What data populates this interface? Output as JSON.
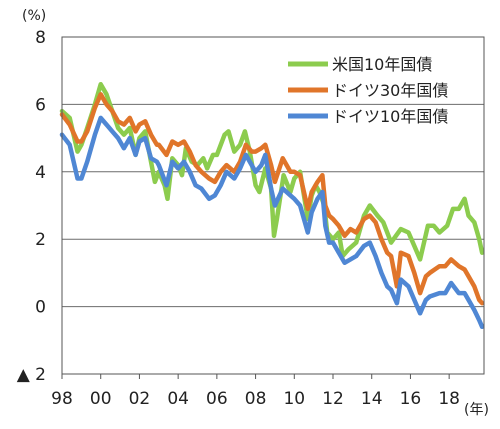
{
  "chart_data": {
    "type": "line",
    "y_unit": "(%)",
    "x_unit": "(年)",
    "xlim": [
      1998,
      2019.8
    ],
    "ylim": [
      -2,
      8
    ],
    "grid": "horizontal",
    "legend_position": "top-right",
    "y_ticks": [
      {
        "value": 8,
        "label": "8"
      },
      {
        "value": 6,
        "label": "6"
      },
      {
        "value": 4,
        "label": "4"
      },
      {
        "value": 2,
        "label": "2"
      },
      {
        "value": 0,
        "label": "0"
      },
      {
        "value": -2,
        "label": "▲ 2"
      }
    ],
    "x_ticks": [
      {
        "value": 1998,
        "label": "98"
      },
      {
        "value": 2000,
        "label": "00"
      },
      {
        "value": 2002,
        "label": "02"
      },
      {
        "value": 2004,
        "label": "04"
      },
      {
        "value": 2006,
        "label": "06"
      },
      {
        "value": 2008,
        "label": "08"
      },
      {
        "value": 2010,
        "label": "10"
      },
      {
        "value": 2012,
        "label": "12"
      },
      {
        "value": 2014,
        "label": "14"
      },
      {
        "value": 2016,
        "label": "16"
      },
      {
        "value": 2018,
        "label": "18"
      }
    ],
    "series": [
      {
        "name": "米国10年国債",
        "color": "#8ccc4e",
        "points": [
          [
            1998.0,
            5.8
          ],
          [
            1998.4,
            5.6
          ],
          [
            1998.8,
            4.6
          ],
          [
            1999.0,
            4.8
          ],
          [
            1999.3,
            5.3
          ],
          [
            1999.7,
            6.0
          ],
          [
            2000.0,
            6.6
          ],
          [
            2000.3,
            6.3
          ],
          [
            2000.6,
            5.8
          ],
          [
            2000.9,
            5.3
          ],
          [
            2001.2,
            5.1
          ],
          [
            2001.5,
            5.3
          ],
          [
            2001.8,
            4.5
          ],
          [
            2002.0,
            5.0
          ],
          [
            2002.3,
            5.2
          ],
          [
            2002.6,
            4.3
          ],
          [
            2002.8,
            3.7
          ],
          [
            2003.0,
            4.0
          ],
          [
            2003.3,
            3.6
          ],
          [
            2003.45,
            3.2
          ],
          [
            2003.7,
            4.4
          ],
          [
            2004.0,
            4.2
          ],
          [
            2004.2,
            3.9
          ],
          [
            2004.4,
            4.7
          ],
          [
            2004.7,
            4.3
          ],
          [
            2005.0,
            4.2
          ],
          [
            2005.3,
            4.4
          ],
          [
            2005.5,
            4.1
          ],
          [
            2005.8,
            4.5
          ],
          [
            2006.0,
            4.5
          ],
          [
            2006.4,
            5.1
          ],
          [
            2006.6,
            5.2
          ],
          [
            2006.9,
            4.6
          ],
          [
            2007.2,
            4.8
          ],
          [
            2007.45,
            5.2
          ],
          [
            2007.7,
            4.6
          ],
          [
            2008.0,
            3.6
          ],
          [
            2008.2,
            3.4
          ],
          [
            2008.5,
            4.1
          ],
          [
            2008.8,
            3.5
          ],
          [
            2008.95,
            2.1
          ],
          [
            2009.1,
            2.6
          ],
          [
            2009.45,
            3.9
          ],
          [
            2009.8,
            3.4
          ],
          [
            2010.0,
            3.8
          ],
          [
            2010.3,
            4.0
          ],
          [
            2010.7,
            2.6
          ],
          [
            2010.9,
            3.3
          ],
          [
            2011.1,
            3.6
          ],
          [
            2011.3,
            3.4
          ],
          [
            2011.55,
            3.0
          ],
          [
            2011.7,
            2.2
          ],
          [
            2012.0,
            2.0
          ],
          [
            2012.3,
            2.2
          ],
          [
            2012.5,
            1.5
          ],
          [
            2012.8,
            1.7
          ],
          [
            2013.2,
            1.9
          ],
          [
            2013.6,
            2.7
          ],
          [
            2013.9,
            3.0
          ],
          [
            2014.3,
            2.7
          ],
          [
            2014.6,
            2.5
          ],
          [
            2015.0,
            1.9
          ],
          [
            2015.5,
            2.3
          ],
          [
            2015.9,
            2.2
          ],
          [
            2016.2,
            1.8
          ],
          [
            2016.5,
            1.4
          ],
          [
            2016.9,
            2.4
          ],
          [
            2017.2,
            2.4
          ],
          [
            2017.5,
            2.2
          ],
          [
            2017.9,
            2.4
          ],
          [
            2018.2,
            2.9
          ],
          [
            2018.5,
            2.9
          ],
          [
            2018.8,
            3.2
          ],
          [
            2019.0,
            2.7
          ],
          [
            2019.3,
            2.5
          ],
          [
            2019.55,
            2.0
          ],
          [
            2019.7,
            1.6
          ]
        ]
      },
      {
        "name": "ドイツ30年国債",
        "color": "#e0752a",
        "points": [
          [
            1998.0,
            5.7
          ],
          [
            1998.4,
            5.4
          ],
          [
            1998.8,
            4.9
          ],
          [
            1999.0,
            4.9
          ],
          [
            1999.3,
            5.2
          ],
          [
            1999.7,
            5.9
          ],
          [
            2000.0,
            6.3
          ],
          [
            2000.3,
            6.0
          ],
          [
            2000.6,
            5.8
          ],
          [
            2000.9,
            5.5
          ],
          [
            2001.2,
            5.4
          ],
          [
            2001.5,
            5.6
          ],
          [
            2001.8,
            5.2
          ],
          [
            2002.0,
            5.4
          ],
          [
            2002.3,
            5.5
          ],
          [
            2002.6,
            5.1
          ],
          [
            2002.9,
            4.8
          ],
          [
            2003.0,
            4.8
          ],
          [
            2003.4,
            4.5
          ],
          [
            2003.7,
            4.9
          ],
          [
            2004.0,
            4.8
          ],
          [
            2004.3,
            4.9
          ],
          [
            2004.6,
            4.6
          ],
          [
            2004.9,
            4.2
          ],
          [
            2005.2,
            4.0
          ],
          [
            2005.6,
            3.8
          ],
          [
            2005.9,
            3.7
          ],
          [
            2006.2,
            4.0
          ],
          [
            2006.5,
            4.2
          ],
          [
            2006.9,
            4.0
          ],
          [
            2007.2,
            4.3
          ],
          [
            2007.5,
            4.8
          ],
          [
            2007.8,
            4.6
          ],
          [
            2008.0,
            4.6
          ],
          [
            2008.3,
            4.7
          ],
          [
            2008.5,
            4.8
          ],
          [
            2008.8,
            4.2
          ],
          [
            2009.0,
            3.7
          ],
          [
            2009.4,
            4.4
          ],
          [
            2009.8,
            4.0
          ],
          [
            2010.0,
            4.0
          ],
          [
            2010.3,
            3.9
          ],
          [
            2010.7,
            2.9
          ],
          [
            2010.9,
            3.4
          ],
          [
            2011.2,
            3.7
          ],
          [
            2011.45,
            3.9
          ],
          [
            2011.6,
            3.0
          ],
          [
            2011.8,
            2.7
          ],
          [
            2012.0,
            2.6
          ],
          [
            2012.3,
            2.4
          ],
          [
            2012.6,
            2.1
          ],
          [
            2012.9,
            2.3
          ],
          [
            2013.2,
            2.2
          ],
          [
            2013.6,
            2.6
          ],
          [
            2013.9,
            2.7
          ],
          [
            2014.2,
            2.5
          ],
          [
            2014.5,
            2.0
          ],
          [
            2014.8,
            1.6
          ],
          [
            2015.0,
            1.5
          ],
          [
            2015.3,
            0.6
          ],
          [
            2015.5,
            1.6
          ],
          [
            2015.9,
            1.5
          ],
          [
            2016.2,
            1.0
          ],
          [
            2016.5,
            0.4
          ],
          [
            2016.8,
            0.9
          ],
          [
            2017.0,
            1.0
          ],
          [
            2017.5,
            1.2
          ],
          [
            2017.8,
            1.2
          ],
          [
            2018.1,
            1.4
          ],
          [
            2018.5,
            1.2
          ],
          [
            2018.8,
            1.1
          ],
          [
            2019.0,
            0.9
          ],
          [
            2019.3,
            0.6
          ],
          [
            2019.55,
            0.2
          ],
          [
            2019.7,
            0.1
          ]
        ]
      },
      {
        "name": "ドイツ10年国債",
        "color": "#4f87d4",
        "points": [
          [
            1998.0,
            5.1
          ],
          [
            1998.4,
            4.8
          ],
          [
            1998.8,
            3.8
          ],
          [
            1999.0,
            3.8
          ],
          [
            1999.3,
            4.3
          ],
          [
            1999.7,
            5.1
          ],
          [
            2000.0,
            5.6
          ],
          [
            2000.3,
            5.4
          ],
          [
            2000.6,
            5.2
          ],
          [
            2000.9,
            5.0
          ],
          [
            2001.2,
            4.7
          ],
          [
            2001.5,
            5.0
          ],
          [
            2001.8,
            4.5
          ],
          [
            2002.0,
            4.9
          ],
          [
            2002.3,
            5.0
          ],
          [
            2002.6,
            4.4
          ],
          [
            2002.9,
            4.3
          ],
          [
            2003.0,
            4.2
          ],
          [
            2003.4,
            3.6
          ],
          [
            2003.7,
            4.3
          ],
          [
            2004.0,
            4.1
          ],
          [
            2004.3,
            4.3
          ],
          [
            2004.6,
            4.0
          ],
          [
            2004.9,
            3.6
          ],
          [
            2005.2,
            3.5
          ],
          [
            2005.6,
            3.2
          ],
          [
            2005.9,
            3.3
          ],
          [
            2006.2,
            3.6
          ],
          [
            2006.5,
            4.0
          ],
          [
            2006.9,
            3.8
          ],
          [
            2007.2,
            4.1
          ],
          [
            2007.5,
            4.5
          ],
          [
            2007.8,
            4.2
          ],
          [
            2008.0,
            4.0
          ],
          [
            2008.3,
            4.2
          ],
          [
            2008.5,
            4.5
          ],
          [
            2008.8,
            3.5
          ],
          [
            2009.0,
            3.0
          ],
          [
            2009.4,
            3.5
          ],
          [
            2009.8,
            3.3
          ],
          [
            2010.0,
            3.2
          ],
          [
            2010.3,
            3.0
          ],
          [
            2010.7,
            2.2
          ],
          [
            2010.9,
            2.8
          ],
          [
            2011.2,
            3.2
          ],
          [
            2011.45,
            3.4
          ],
          [
            2011.6,
            2.4
          ],
          [
            2011.8,
            1.9
          ],
          [
            2012.0,
            1.9
          ],
          [
            2012.3,
            1.6
          ],
          [
            2012.6,
            1.3
          ],
          [
            2012.9,
            1.4
          ],
          [
            2013.2,
            1.5
          ],
          [
            2013.6,
            1.8
          ],
          [
            2013.9,
            1.9
          ],
          [
            2014.2,
            1.5
          ],
          [
            2014.5,
            1.0
          ],
          [
            2014.8,
            0.6
          ],
          [
            2015.0,
            0.5
          ],
          [
            2015.3,
            0.1
          ],
          [
            2015.5,
            0.8
          ],
          [
            2015.9,
            0.6
          ],
          [
            2016.2,
            0.2
          ],
          [
            2016.5,
            -0.2
          ],
          [
            2016.8,
            0.2
          ],
          [
            2017.0,
            0.3
          ],
          [
            2017.5,
            0.4
          ],
          [
            2017.8,
            0.4
          ],
          [
            2018.1,
            0.7
          ],
          [
            2018.5,
            0.4
          ],
          [
            2018.8,
            0.4
          ],
          [
            2019.0,
            0.2
          ],
          [
            2019.3,
            -0.1
          ],
          [
            2019.55,
            -0.4
          ],
          [
            2019.7,
            -0.6
          ]
        ]
      }
    ]
  }
}
